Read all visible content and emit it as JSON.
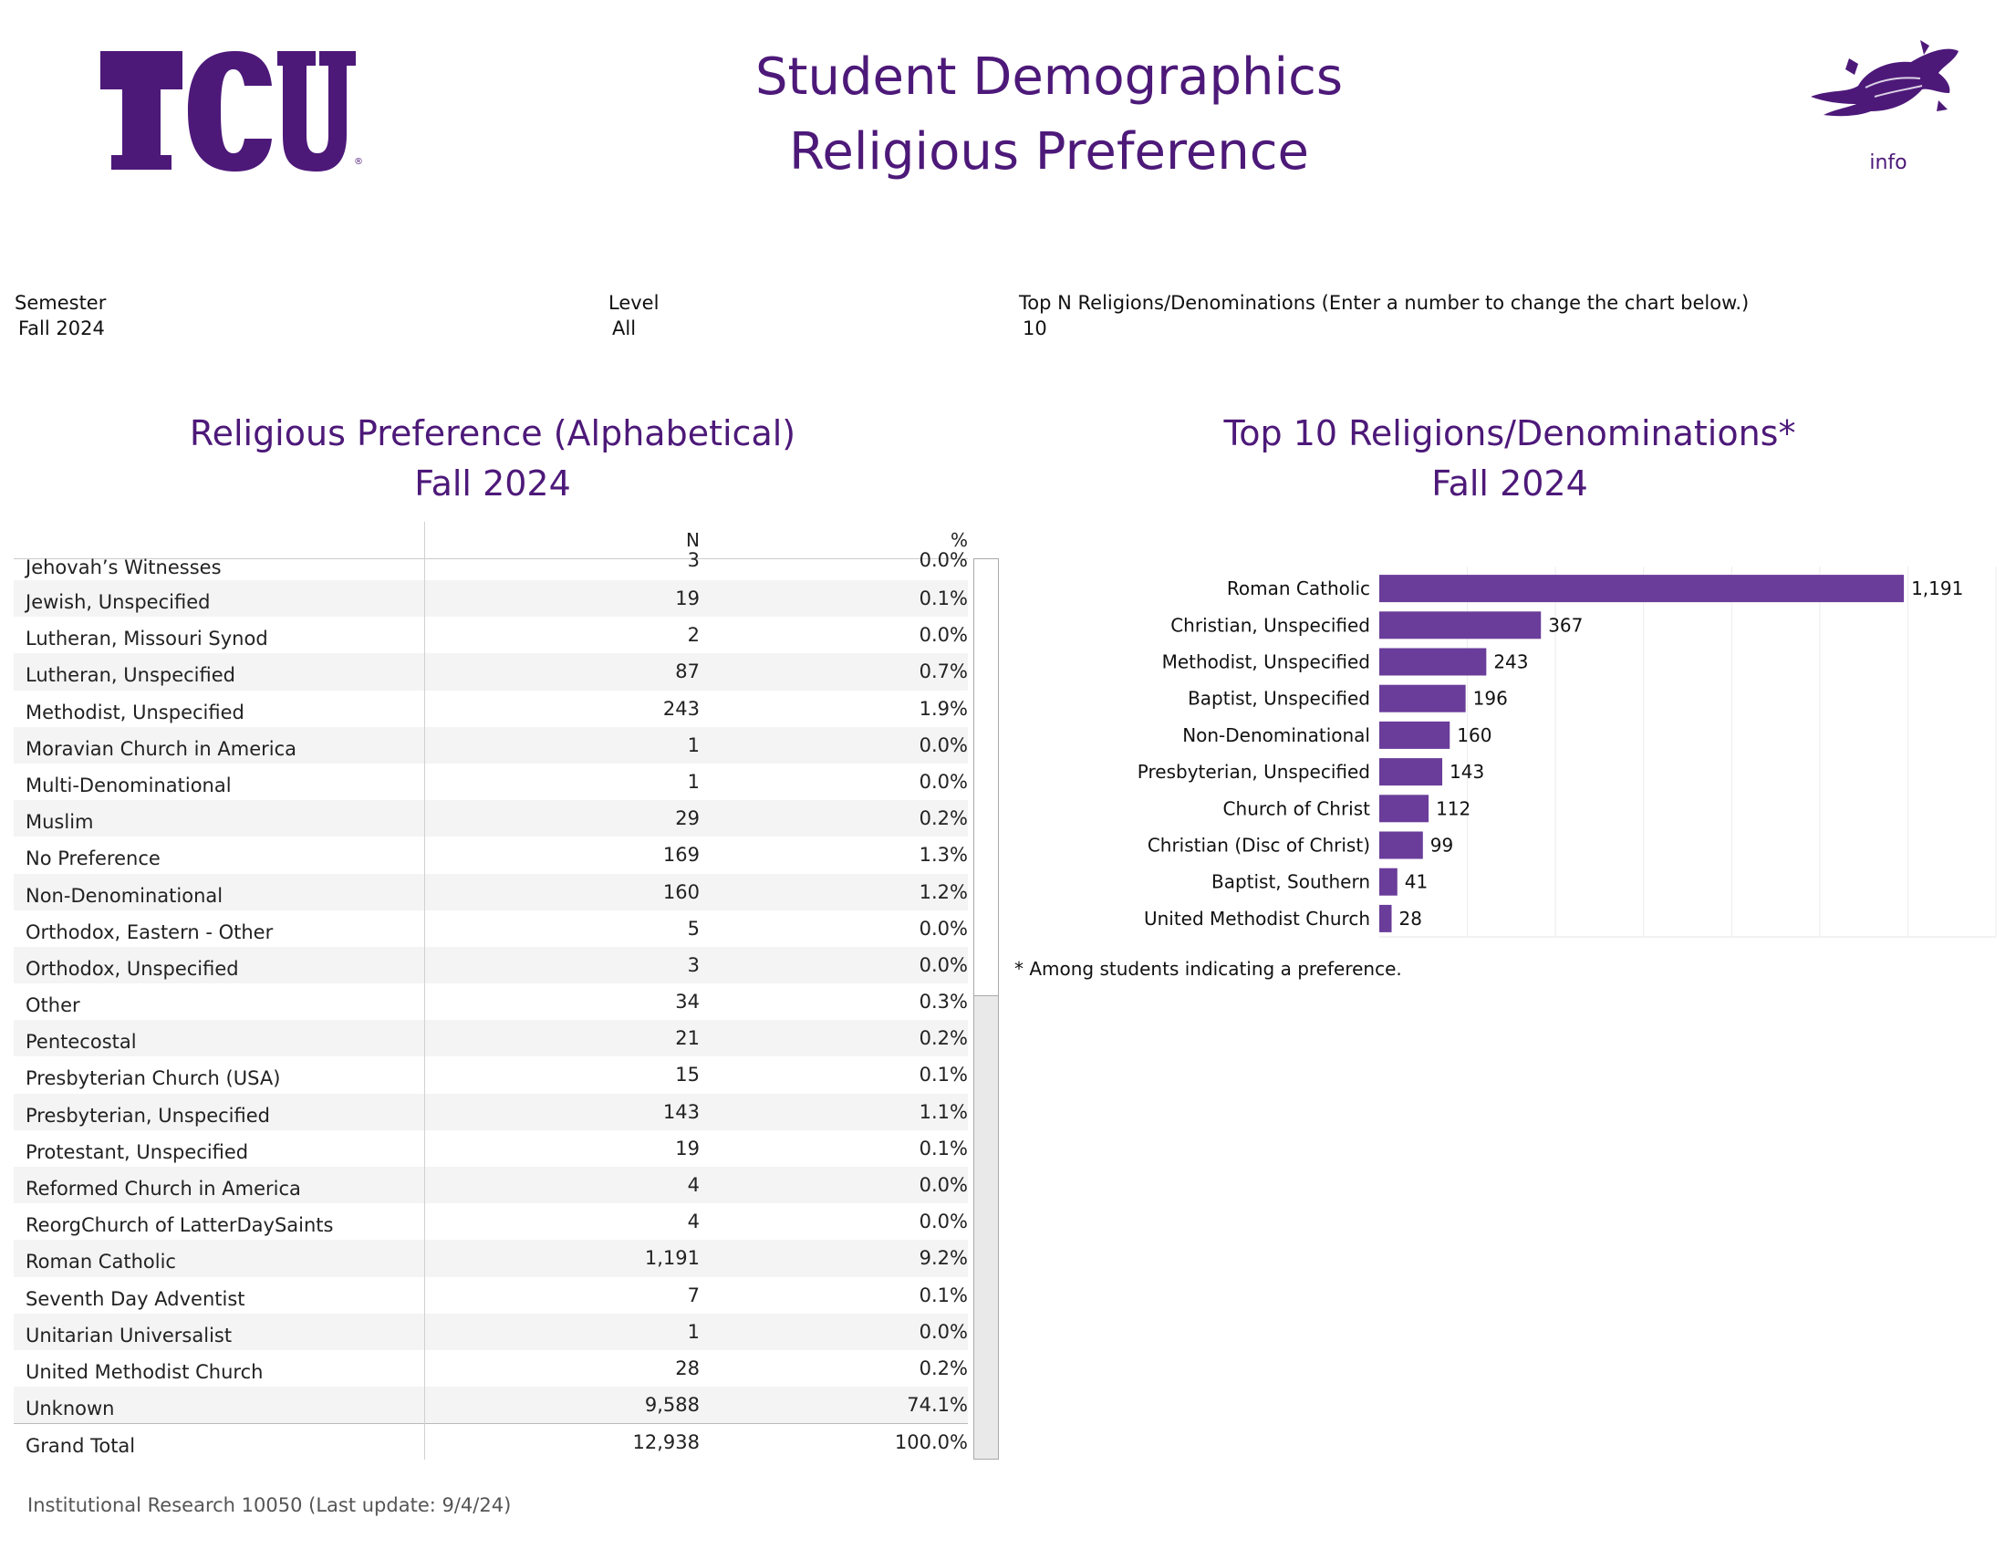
{
  "header": {
    "logo_text": "TCU",
    "title_line1": "Student Demographics",
    "title_line2": "Religious Preference",
    "info_label": "info",
    "brand_color": "#4d1979"
  },
  "filters": {
    "semester_label": "Semester",
    "semester_value": "Fall 2024",
    "level_label": "Level",
    "level_value": "All",
    "topn_label": "Top N Religions/Denominations (Enter a number to change the chart below.)",
    "topn_value": "10"
  },
  "table_section": {
    "title_line1": "Religious Preference (Alphabetical)",
    "title_line2": "Fall 2024",
    "columns": {
      "n": "N",
      "pct": "%"
    },
    "rows": [
      {
        "name": "Jehovah’s Witnesses",
        "n": "3",
        "pct": "0.0%"
      },
      {
        "name": "Jewish, Unspecified",
        "n": "19",
        "pct": "0.1%"
      },
      {
        "name": "Lutheran, Missouri Synod",
        "n": "2",
        "pct": "0.0%"
      },
      {
        "name": "Lutheran, Unspecified",
        "n": "87",
        "pct": "0.7%"
      },
      {
        "name": "Methodist, Unspecified",
        "n": "243",
        "pct": "1.9%"
      },
      {
        "name": "Moravian Church in America",
        "n": "1",
        "pct": "0.0%"
      },
      {
        "name": "Multi-Denominational",
        "n": "1",
        "pct": "0.0%"
      },
      {
        "name": "Muslim",
        "n": "29",
        "pct": "0.2%"
      },
      {
        "name": "No Preference",
        "n": "169",
        "pct": "1.3%"
      },
      {
        "name": "Non-Denominational",
        "n": "160",
        "pct": "1.2%"
      },
      {
        "name": "Orthodox, Eastern - Other",
        "n": "5",
        "pct": "0.0%"
      },
      {
        "name": "Orthodox, Unspecified",
        "n": "3",
        "pct": "0.0%"
      },
      {
        "name": "Other",
        "n": "34",
        "pct": "0.3%"
      },
      {
        "name": "Pentecostal",
        "n": "21",
        "pct": "0.2%"
      },
      {
        "name": "Presbyterian Church (USA)",
        "n": "15",
        "pct": "0.1%"
      },
      {
        "name": "Presbyterian, Unspecified",
        "n": "143",
        "pct": "1.1%"
      },
      {
        "name": "Protestant, Unspecified",
        "n": "19",
        "pct": "0.1%"
      },
      {
        "name": "Reformed Church in America",
        "n": "4",
        "pct": "0.0%"
      },
      {
        "name": "ReorgChurch of LatterDaySaints",
        "n": "4",
        "pct": "0.0%"
      },
      {
        "name": "Roman Catholic",
        "n": "1,191",
        "pct": "9.2%"
      },
      {
        "name": "Seventh Day Adventist",
        "n": "7",
        "pct": "0.1%"
      },
      {
        "name": "Unitarian Universalist",
        "n": "1",
        "pct": "0.0%"
      },
      {
        "name": "United Methodist Church",
        "n": "28",
        "pct": "0.2%"
      },
      {
        "name": "Unknown",
        "n": "9,588",
        "pct": "74.1%"
      },
      {
        "name": "Grand Total",
        "n": "12,938",
        "pct": "100.0%"
      }
    ]
  },
  "chart_section": {
    "title_line1": "Top 10 Religions/Denominations*",
    "title_line2": "Fall 2024",
    "note": "* Among students indicating a preference."
  },
  "chart_data": {
    "type": "bar",
    "orientation": "horizontal",
    "title": "Top 10 Religions/Denominations*",
    "subtitle": "Fall 2024",
    "categories": [
      "Roman Catholic",
      "Christian, Unspecified",
      "Methodist, Unspecified",
      "Baptist, Unspecified",
      "Non-Denominational",
      "Presbyterian, Unspecified",
      "Church of Christ",
      "Christian (Disc of Christ)",
      "Baptist, Southern",
      "United Methodist Church"
    ],
    "values": [
      1191,
      367,
      243,
      196,
      160,
      143,
      112,
      99,
      41,
      28
    ],
    "value_labels": [
      "1,191",
      "367",
      "243",
      "196",
      "160",
      "143",
      "112",
      "99",
      "41",
      "28"
    ],
    "xlim": [
      0,
      1400
    ],
    "gridlines": [
      200,
      400,
      600,
      800,
      1000,
      1200,
      1400
    ],
    "color": "#6a3d9a"
  },
  "footer": {
    "text": "Institutional Research 10050 (Last update: 9/4/24)"
  }
}
